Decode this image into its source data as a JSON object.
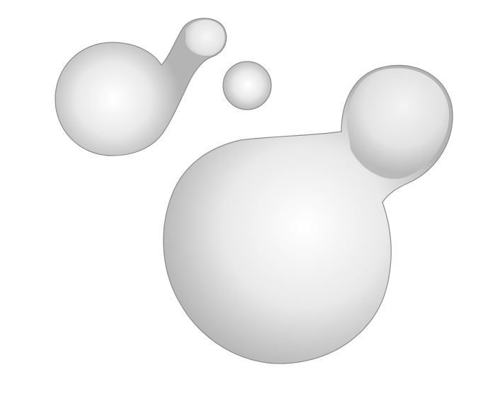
{
  "scene": {
    "background_color": "#ffffff",
    "blob_highlight_color": "#ffffff",
    "blob_mid_color": "#e9e9e9",
    "blob_shadow_color": "#b4b4b4",
    "blob_outline_color": "#8a8a8a",
    "shapes": [
      {
        "id": "large-blob",
        "kind": "merged-blob"
      },
      {
        "id": "small-blob",
        "kind": "merged-blob"
      },
      {
        "id": "detached-sphere",
        "kind": "sphere"
      }
    ]
  }
}
